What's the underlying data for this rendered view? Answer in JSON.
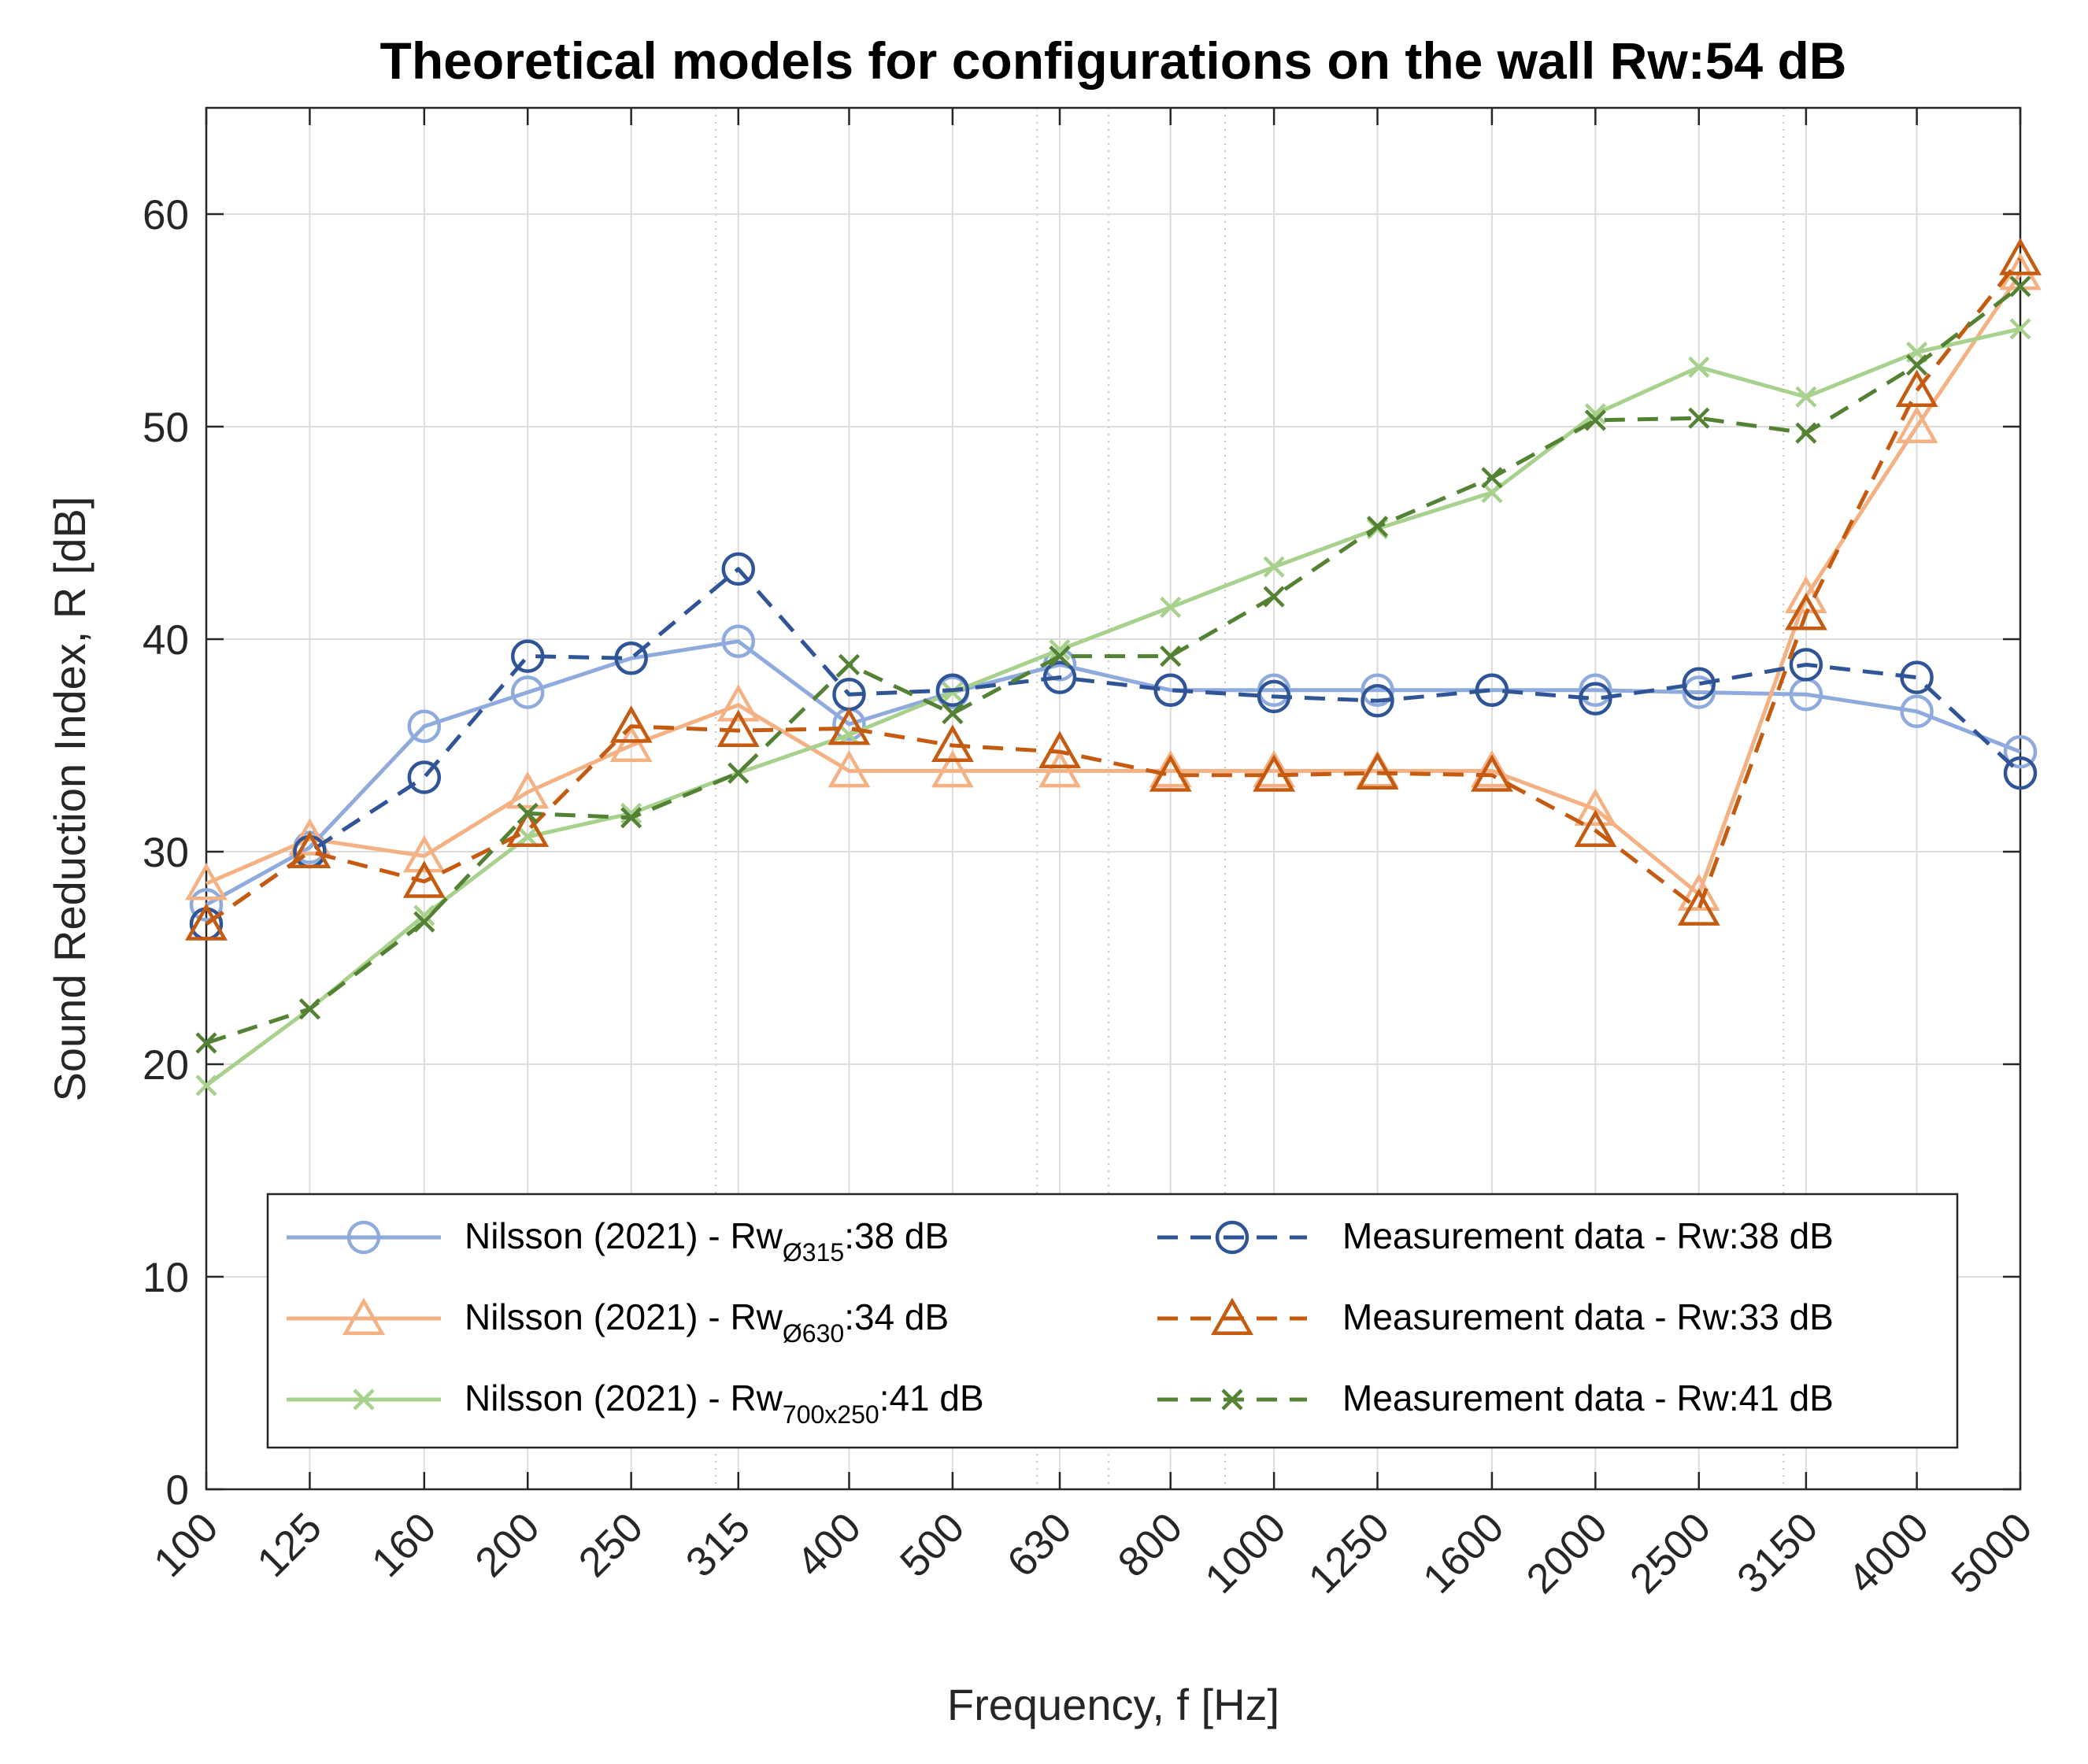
{
  "chart_data": {
    "type": "line",
    "title": "Theoretical models for configurations on the wall Rw:54 dB",
    "xlabel": "Frequency, f [Hz]",
    "ylabel": "Sound Reduction Index, R [dB]",
    "x_scale": "log",
    "xlim": [
      100,
      5000
    ],
    "ylim": [
      0,
      65
    ],
    "grid": true,
    "legend_position": "bottom",
    "x": [
      100,
      125,
      160,
      200,
      250,
      315,
      400,
      500,
      630,
      800,
      1000,
      1250,
      1600,
      2000,
      2500,
      3150,
      4000,
      5000
    ],
    "x_tick_labels": [
      "100",
      "125",
      "160",
      "200",
      "250",
      "315",
      "400",
      "500",
      "630",
      "800",
      "1000",
      "1250",
      "1600",
      "2000",
      "2500",
      "3150",
      "4000",
      "5000"
    ],
    "y_ticks": [
      0,
      10,
      20,
      30,
      40,
      50,
      60
    ],
    "y_tick_labels": [
      "0",
      "10",
      "20",
      "30",
      "40",
      "50",
      "60"
    ],
    "series": [
      {
        "name": "Nilsson (2021) - Rw",
        "name_subscript": "Ø315",
        "name_suffix": ":38 dB",
        "color": "#8faadc",
        "line_style": "solid",
        "marker": "circle",
        "values": [
          27.5,
          30.2,
          35.9,
          37.5,
          39.1,
          39.9,
          36,
          37.5,
          38.8,
          37.6,
          37.6,
          37.6,
          37.6,
          37.6,
          37.5,
          37.4,
          36.6,
          34.7
        ]
      },
      {
        "name": "Nilsson (2021) - Rw",
        "name_subscript": "Ø630",
        "name_suffix": ":34 dB",
        "color": "#f4b183",
        "line_style": "solid",
        "marker": "triangle",
        "values": [
          28.5,
          30.6,
          29.8,
          32.8,
          35,
          36.9,
          33.8,
          33.8,
          33.8,
          33.8,
          33.8,
          33.8,
          33.8,
          32,
          28,
          42,
          50,
          57.2
        ]
      },
      {
        "name": "Nilsson (2021) - Rw",
        "name_subscript": "700x250",
        "name_suffix": ":41 dB",
        "color": "#a9d18e",
        "line_style": "solid",
        "marker": "x",
        "values": [
          19,
          22.6,
          27,
          30.7,
          31.8,
          33.7,
          35.5,
          37.5,
          39.5,
          41.5,
          43.4,
          45.2,
          46.9,
          50.6,
          52.8,
          51.4,
          53.5,
          54.6
        ]
      },
      {
        "name": "Measurement data - Rw:38 dB",
        "color": "#2f5597",
        "line_style": "dashed",
        "marker": "circle",
        "values": [
          26.6,
          30,
          33.5,
          39.2,
          39.1,
          43.3,
          37.4,
          37.6,
          38.2,
          37.6,
          37.3,
          37.1,
          37.6,
          37.2,
          37.9,
          38.8,
          38.2,
          33.7
        ]
      },
      {
        "name": "Measurement data - Rw:33 dB",
        "color": "#c55a11",
        "line_style": "dashed",
        "marker": "triangle",
        "values": [
          26.6,
          30,
          28.6,
          31,
          35.9,
          35.7,
          35.8,
          35,
          34.7,
          33.6,
          33.6,
          33.7,
          33.6,
          31,
          27.3,
          41.2,
          51.7,
          57.9
        ]
      },
      {
        "name": "Measurement data - Rw:41 dB",
        "color": "#548235",
        "line_style": "dashed",
        "marker": "x",
        "values": [
          21,
          22.6,
          26.7,
          31.8,
          31.6,
          33.7,
          38.8,
          36.5,
          39.2,
          39.2,
          42,
          45.3,
          47.6,
          50.3,
          50.4,
          49.7,
          52.9,
          56.6
        ]
      }
    ]
  }
}
